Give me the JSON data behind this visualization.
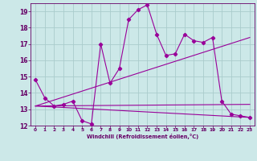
{
  "background_color": "#cce8e8",
  "grid_color": "#aacccc",
  "line_color": "#990099",
  "marker_color": "#990099",
  "xlabel": "Windchill (Refroidissement éolien,°C)",
  "xlabel_color": "#660066",
  "tick_color": "#660066",
  "xlim": [
    -0.5,
    23.5
  ],
  "ylim": [
    12,
    19.5
  ],
  "yticks": [
    12,
    13,
    14,
    15,
    16,
    17,
    18,
    19
  ],
  "xticks": [
    0,
    1,
    2,
    3,
    4,
    5,
    6,
    7,
    8,
    9,
    10,
    11,
    12,
    13,
    14,
    15,
    16,
    17,
    18,
    19,
    20,
    21,
    22,
    23
  ],
  "series1_x": [
    0,
    1,
    2,
    3,
    4,
    5,
    6,
    7,
    8,
    9,
    10,
    11,
    12,
    13,
    14,
    15,
    16,
    17,
    18,
    19,
    20,
    21,
    22,
    23
  ],
  "series1_y": [
    14.8,
    13.7,
    13.2,
    13.3,
    13.5,
    12.3,
    12.1,
    17.0,
    14.6,
    15.5,
    18.5,
    19.1,
    19.4,
    17.6,
    16.3,
    16.4,
    17.6,
    17.2,
    17.1,
    17.4,
    13.5,
    12.7,
    12.6,
    12.5
  ],
  "series2_x": [
    0,
    23
  ],
  "series2_y": [
    13.2,
    13.3
  ],
  "series3_x": [
    0,
    23
  ],
  "series3_y": [
    13.2,
    17.4
  ],
  "series4_x": [
    0,
    23
  ],
  "series4_y": [
    13.2,
    12.5
  ]
}
